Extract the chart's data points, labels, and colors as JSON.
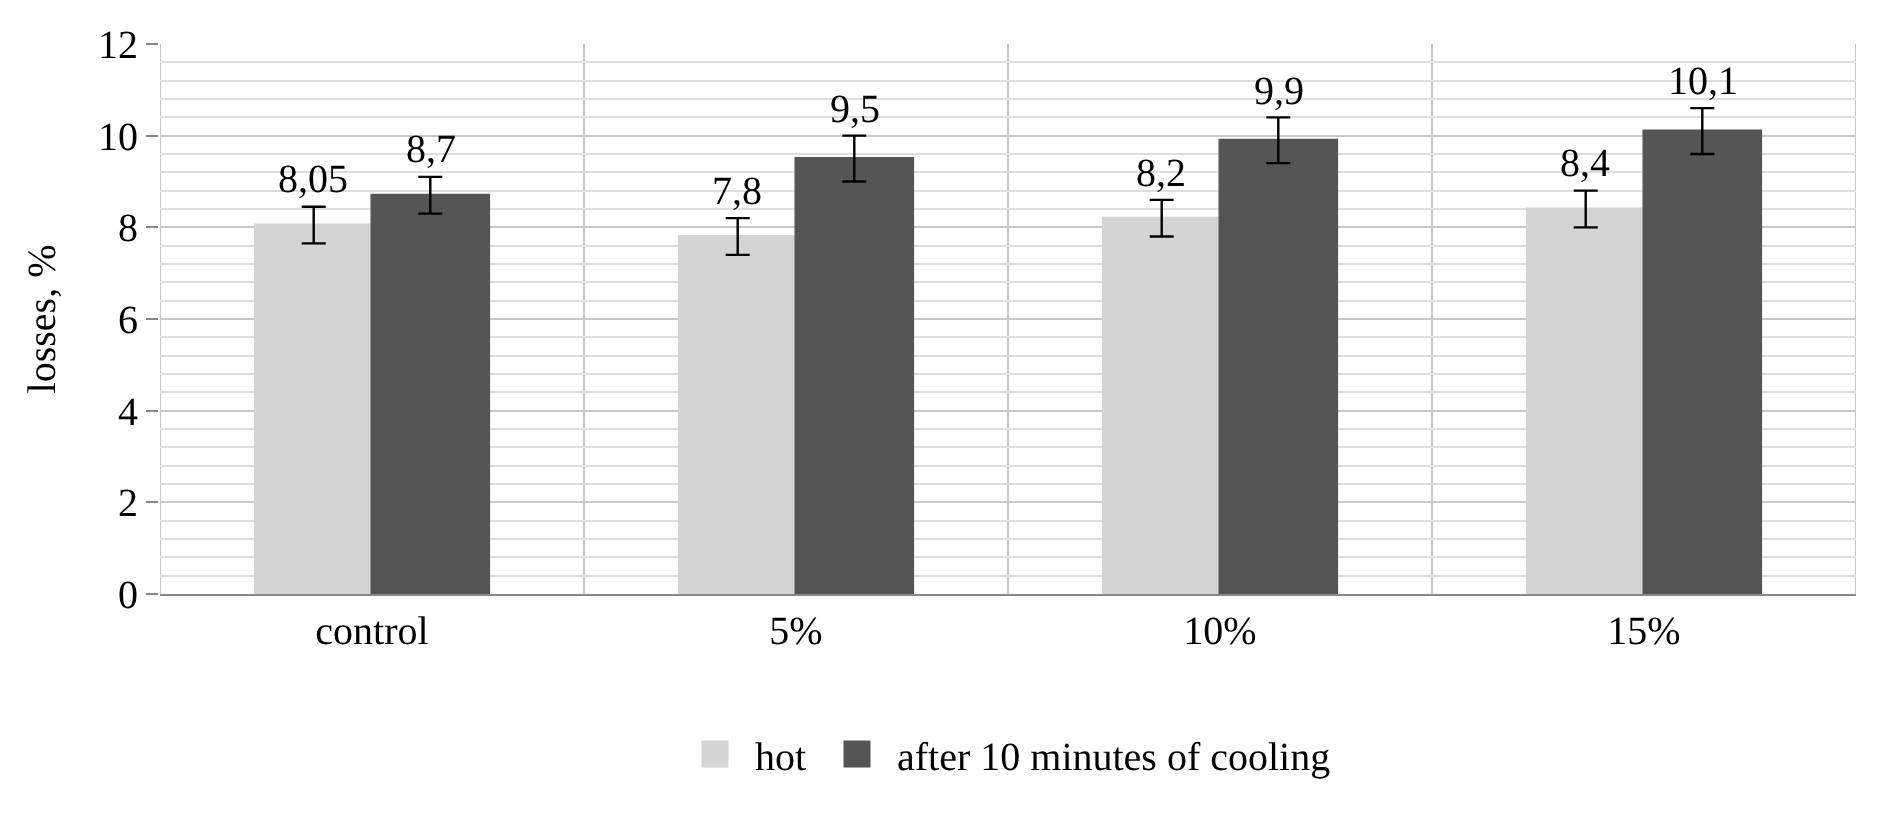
{
  "chart_data": {
    "type": "bar",
    "ylabel": "losses, %",
    "categories": [
      "control",
      "5%",
      "10%",
      "15%"
    ],
    "series": [
      {
        "name": "hot",
        "color": "#d4d4d4",
        "values": [
          8.05,
          7.8,
          8.2,
          8.4
        ],
        "value_labels": [
          "8,05",
          "7,8",
          "8,2",
          "8,4"
        ],
        "errors": [
          0.4,
          0.4,
          0.4,
          0.4
        ]
      },
      {
        "name": "after 10 minutes of cooling",
        "color": "#555555",
        "values": [
          8.7,
          9.5,
          9.9,
          10.1
        ],
        "value_labels": [
          "8,7",
          "9,5",
          "9,9",
          "10,1"
        ],
        "errors": [
          0.4,
          0.5,
          0.5,
          0.5
        ]
      }
    ],
    "ylim": [
      0,
      12
    ],
    "yticks": [
      0,
      2,
      4,
      6,
      8,
      10,
      12
    ],
    "grid": true,
    "legend": "bottom"
  }
}
